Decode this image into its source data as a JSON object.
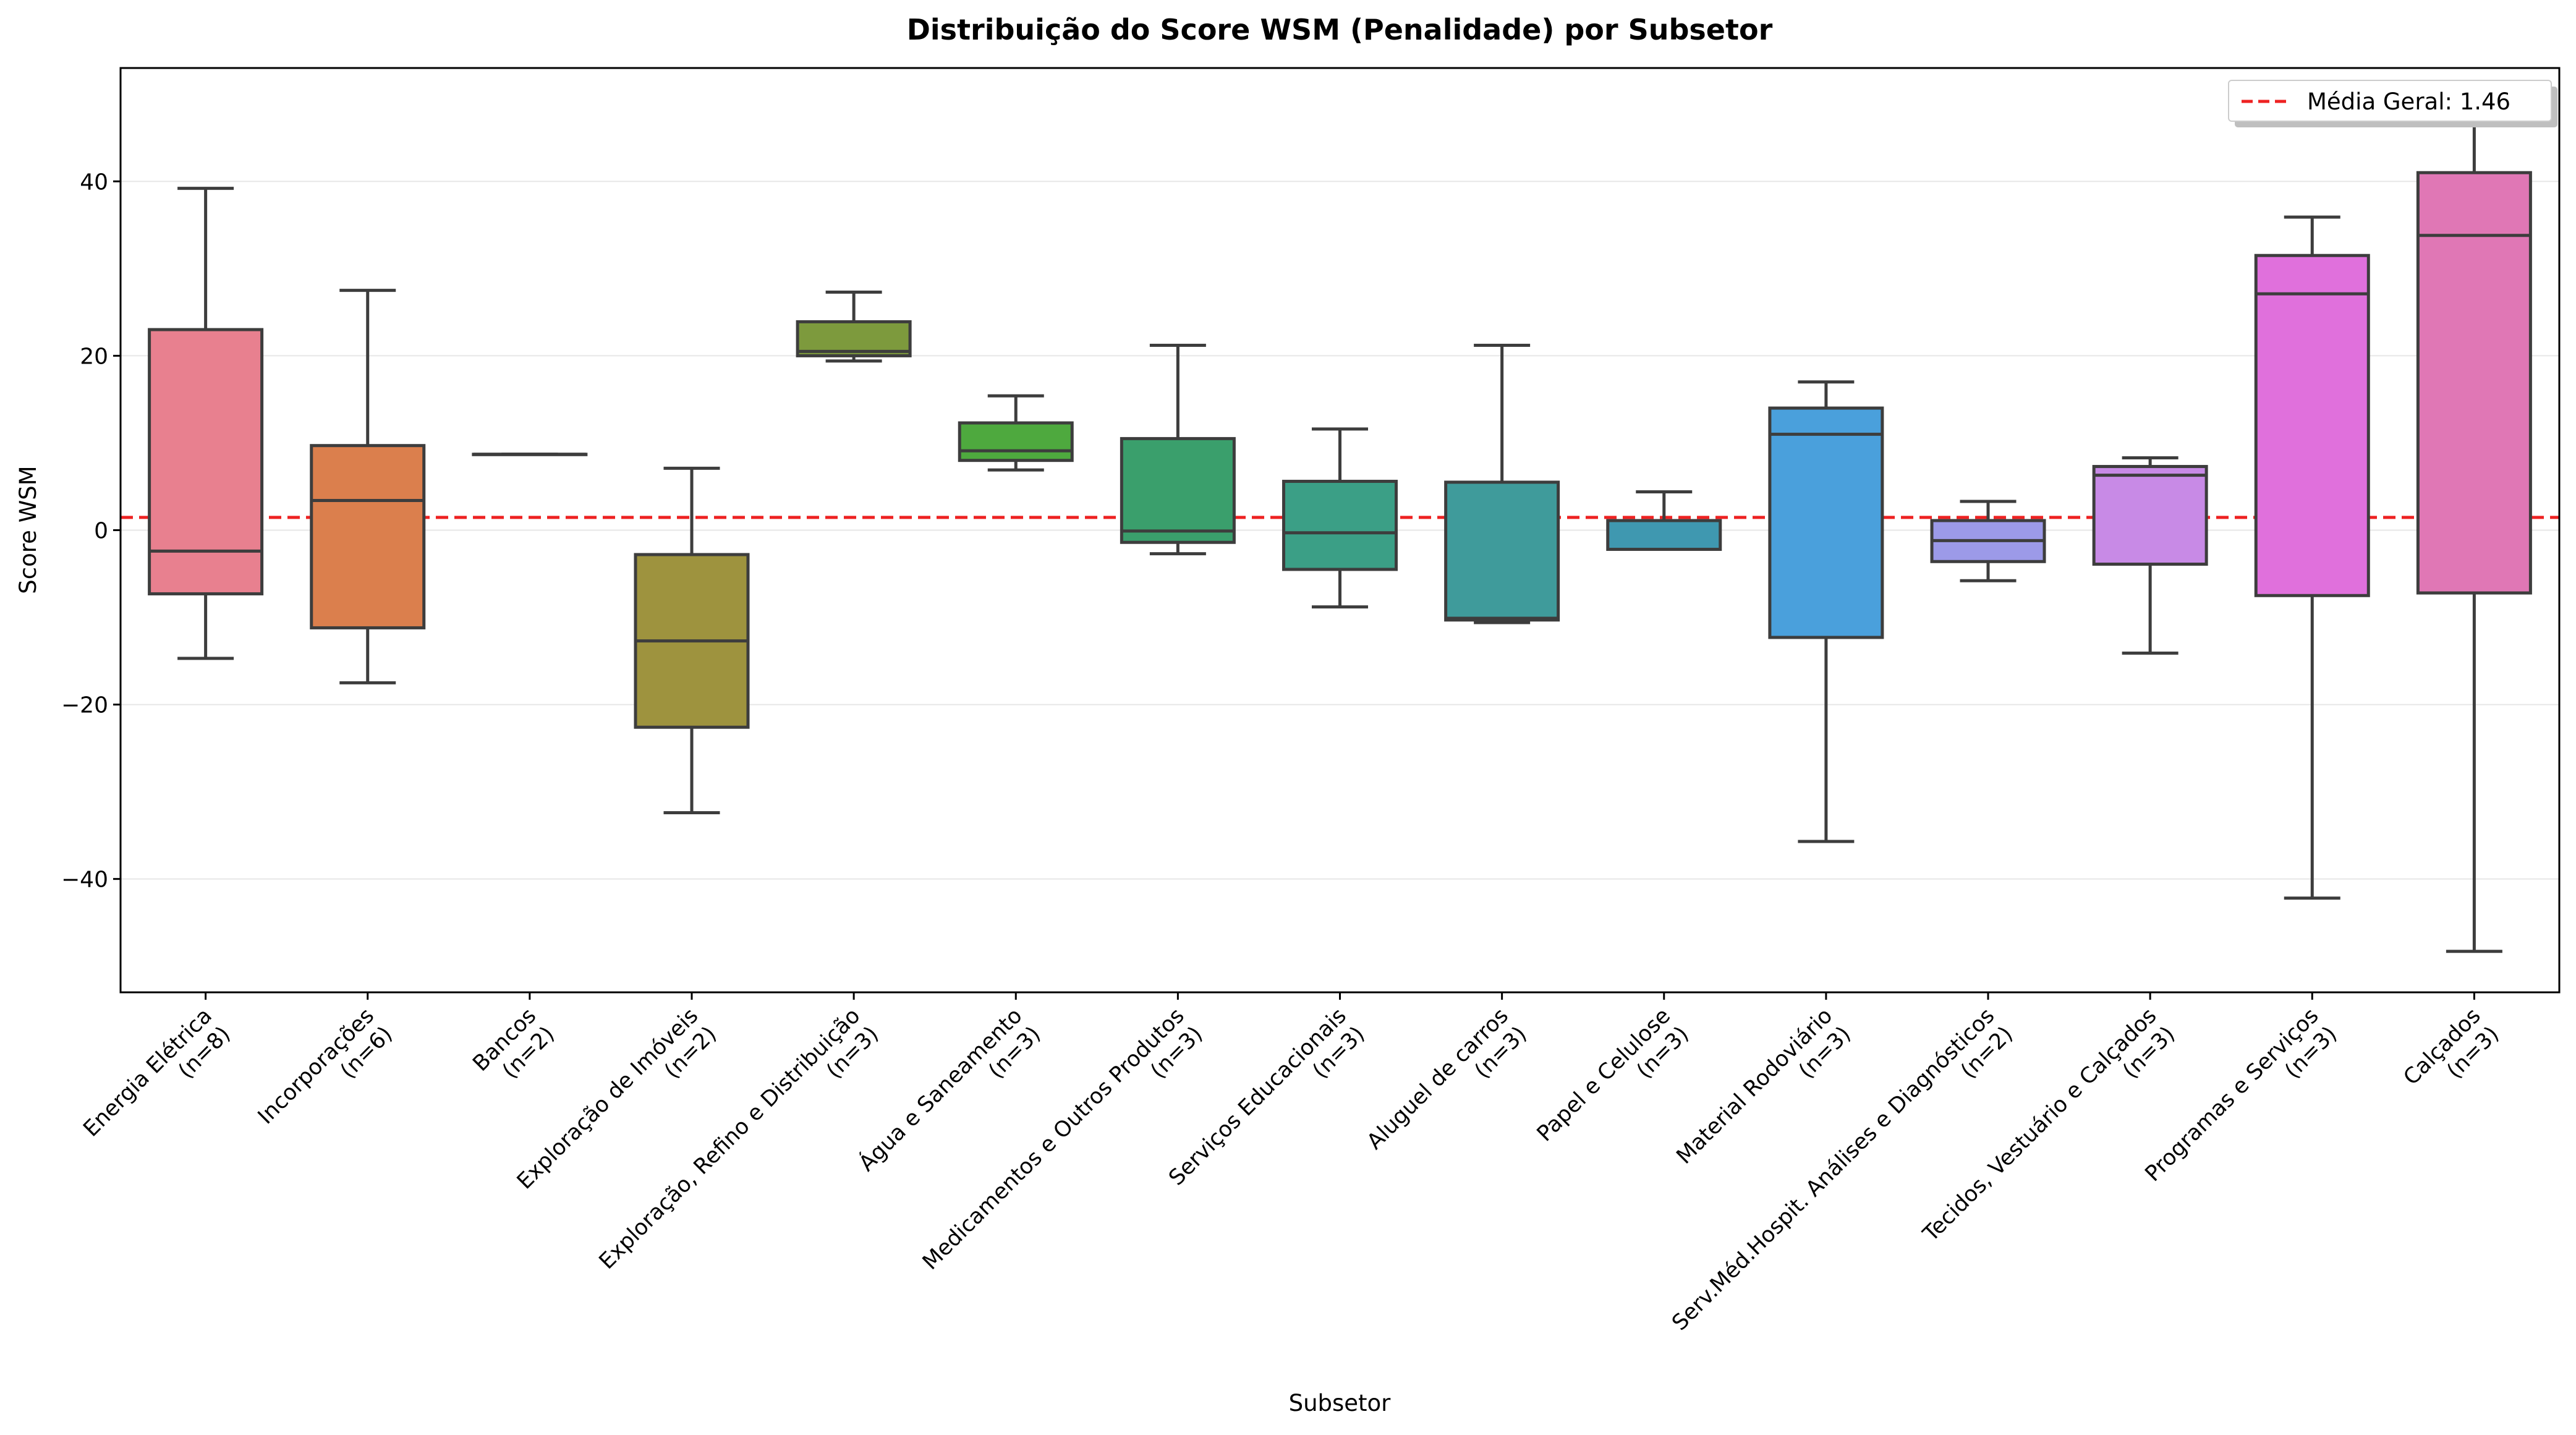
{
  "chart_data": {
    "type": "box",
    "title": "Distribuição do Score WSM (Penalidade) por Subsetor",
    "xlabel": "Subsetor",
    "ylabel": "Score WSM",
    "ylim": [
      -53,
      53
    ],
    "yticks": [
      -40,
      -20,
      0,
      20,
      40
    ],
    "ytick_labels": [
      "−40",
      "−20",
      "0",
      "20",
      "40"
    ],
    "grid": "horizontal",
    "legend_position": "upper-right",
    "reference_line": {
      "label": "Média Geral: 1.46",
      "value": 1.46,
      "color": "#ee2222",
      "style": "dashed"
    },
    "categories": [
      "Energia Elétrica\n(n=8)",
      "Incorporações\n(n=6)",
      "Bancos\n(n=2)",
      "Exploração de Imóveis\n(n=2)",
      "Exploração, Refino e Distribuição\n(n=3)",
      "Água e Saneamento\n(n=3)",
      "Medicamentos e Outros Produtos\n(n=3)",
      "Serviços Educacionais\n(n=3)",
      "Aluguel de carros\n(n=3)",
      "Papel e Celulose\n(n=3)",
      "Material Rodoviário\n(n=3)",
      "Serv.Méd.Hospit. Análises e Diagnósticos\n(n=2)",
      "Tecidos, Vestuário e Calçados\n(n=3)",
      "Programas e Serviços\n(n=3)",
      "Calçados\n(n=3)"
    ],
    "boxes": [
      {
        "whisker_low": -14.7,
        "q1": -7.3,
        "median": -2.4,
        "q3": 23.0,
        "whisker_high": 39.2,
        "color": "#e8808f"
      },
      {
        "whisker_low": -17.5,
        "q1": -11.2,
        "median": 3.4,
        "q3": 9.7,
        "whisker_high": 27.5,
        "color": "#db7f4d"
      },
      {
        "whisker_low": 8.7,
        "q1": 8.7,
        "median": 8.7,
        "q3": 8.7,
        "whisker_high": 8.7,
        "color": "#c48e43"
      },
      {
        "whisker_low": -32.4,
        "q1": -22.6,
        "median": -12.7,
        "q3": -2.8,
        "whisker_high": 7.1,
        "color": "#9e933e"
      },
      {
        "whisker_low": 19.4,
        "q1": 20.0,
        "median": 20.5,
        "q3": 23.9,
        "whisker_high": 27.3,
        "color": "#7d9a3d"
      },
      {
        "whisker_low": 6.9,
        "q1": 8.0,
        "median": 9.1,
        "q3": 12.3,
        "whisker_high": 15.4,
        "color": "#4ea93e"
      },
      {
        "whisker_low": -2.7,
        "q1": -1.4,
        "median": -0.1,
        "q3": 10.5,
        "whisker_high": 21.2,
        "color": "#3a9f6c"
      },
      {
        "whisker_low": -8.8,
        "q1": -4.5,
        "median": -0.3,
        "q3": 5.6,
        "whisker_high": 11.6,
        "color": "#3b9f86"
      },
      {
        "whisker_low": -10.6,
        "q1": -10.3,
        "median": -10.1,
        "q3": 5.5,
        "whisker_high": 21.2,
        "color": "#3f9b9b"
      },
      {
        "whisker_low": -2.2,
        "q1": -2.2,
        "median": -2.2,
        "q3": 1.1,
        "whisker_high": 4.4,
        "color": "#3f98b0"
      },
      {
        "whisker_low": -35.7,
        "q1": -12.3,
        "median": 11.0,
        "q3": 14.0,
        "whisker_high": 17.0,
        "color": "#4aa0dc"
      },
      {
        "whisker_low": -5.8,
        "q1": -3.6,
        "median": -1.2,
        "q3": 1.1,
        "whisker_high": 3.3,
        "color": "#9c9ae8"
      },
      {
        "whisker_low": -14.1,
        "q1": -3.9,
        "median": 6.3,
        "q3": 7.3,
        "whisker_high": 8.3,
        "color": "#c88ae6"
      },
      {
        "whisker_low": -42.2,
        "q1": -7.5,
        "median": 27.1,
        "q3": 31.5,
        "whisker_high": 35.9,
        "color": "#e070dc"
      },
      {
        "whisker_low": -48.3,
        "q1": -7.2,
        "median": 33.8,
        "q3": 41.0,
        "whisker_high": 48.3,
        "color": "#e077b5"
      }
    ]
  }
}
